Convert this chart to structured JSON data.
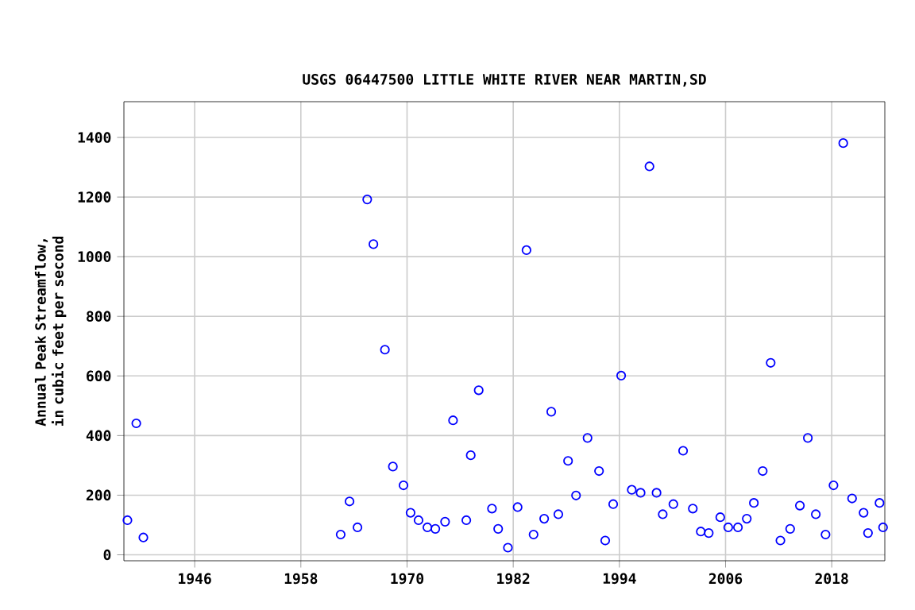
{
  "chart_data": {
    "type": "scatter",
    "title": "USGS 06447500 LITTLE WHITE RIVER NEAR MARTIN,SD",
    "ylabel": "Annual Peak Streamflow, in cubic feet per second",
    "x": [
      1938.4,
      1939.4,
      1940.2,
      1962.5,
      1963.5,
      1964.4,
      1965.5,
      1966.2,
      1967.5,
      1968.4,
      1969.6,
      1970.4,
      1971.3,
      1972.3,
      1973.2,
      1974.3,
      1975.2,
      1976.7,
      1977.2,
      1978.1,
      1979.6,
      1980.3,
      1981.4,
      1982.5,
      1983.5,
      1984.3,
      1985.5,
      1986.3,
      1987.1,
      1988.2,
      1989.1,
      1990.4,
      1991.7,
      1992.4,
      1993.3,
      1994.2,
      1995.4,
      1996.4,
      1997.4,
      1998.2,
      1998.9,
      2000.1,
      2001.2,
      2002.3,
      2003.2,
      2004.1,
      2005.4,
      2006.3,
      2007.4,
      2008.4,
      2009.2,
      2010.2,
      2011.1,
      2012.2,
      2013.3,
      2014.4,
      2015.3,
      2016.2,
      2017.3,
      2018.2,
      2019.3,
      2020.3,
      2021.6,
      2022.1,
      2023.4,
      2023.8
    ],
    "series": [
      {
        "color": "#0000ff",
        "values": [
          116,
          441,
          58,
          68,
          179,
          92,
          1192,
          1042,
          688,
          296,
          233,
          141,
          116,
          92,
          87,
          111,
          451,
          116,
          334,
          552,
          155,
          87,
          24,
          160,
          1022,
          68,
          121,
          480,
          136,
          315,
          199,
          392,
          281,
          48,
          170,
          601,
          218,
          208,
          1303,
          208,
          136,
          170,
          349,
          155,
          78,
          73,
          126,
          92,
          92,
          121,
          174,
          281,
          644,
          48,
          87,
          165,
          392,
          136,
          68,
          233,
          1381,
          189,
          141,
          73,
          174,
          92
        ]
      }
    ],
    "xlim": [
      1938,
      2024
    ],
    "ylim": [
      -20,
      1520
    ],
    "xticks": [
      1946,
      1958,
      1970,
      1982,
      1994,
      2006,
      2018
    ],
    "yticks": [
      0,
      200,
      400,
      600,
      800,
      1000,
      1200,
      1400
    ],
    "grid": true,
    "marker": "circle"
  }
}
